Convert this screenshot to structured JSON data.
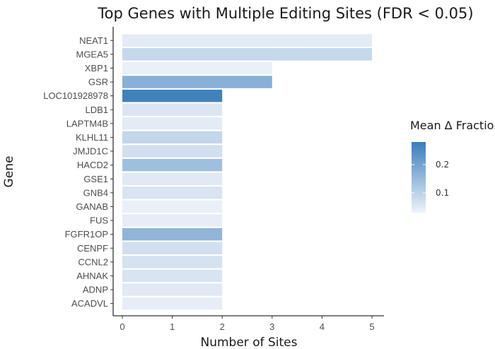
{
  "chart_data": {
    "type": "bar",
    "orientation": "horizontal",
    "title": "Top Genes with Multiple Editing Sites (FDR < 0.05)",
    "xlabel": "Number of Sites",
    "ylabel": "Gene",
    "xlim": [
      0,
      5.2
    ],
    "xticks": [
      0,
      1,
      2,
      3,
      4,
      5
    ],
    "grid": false,
    "categories": [
      "NEAT1",
      "MGEA5",
      "XBP1",
      "GSR",
      "LOC101928978",
      "LDB1",
      "LAPTM4B",
      "KLHL11",
      "JMJD1C",
      "HACD2",
      "GSE1",
      "GNB4",
      "GANAB",
      "FUS",
      "FGFR1OP",
      "CENPF",
      "CCNL2",
      "AHNAK",
      "ADNP",
      "ACADVL"
    ],
    "values": [
      5,
      5,
      3,
      3,
      2,
      2,
      2,
      2,
      2,
      2,
      2,
      2,
      2,
      2,
      2,
      2,
      2,
      2,
      2,
      2
    ],
    "fill_values": [
      0.045,
      0.085,
      0.035,
      0.17,
      0.27,
      0.055,
      0.045,
      0.09,
      0.07,
      0.14,
      0.05,
      0.06,
      0.035,
      0.04,
      0.16,
      0.07,
      0.065,
      0.06,
      0.05,
      0.04
    ],
    "legend": {
      "title": "Mean Δ Fraction",
      "placement": "right",
      "range": [
        0.03,
        0.28
      ],
      "ticks": [
        0.1,
        0.2
      ],
      "tick_labels": [
        "0.1",
        "0.2"
      ],
      "color_low": "#eef2f9",
      "color_high": "#3a7dbb"
    }
  }
}
